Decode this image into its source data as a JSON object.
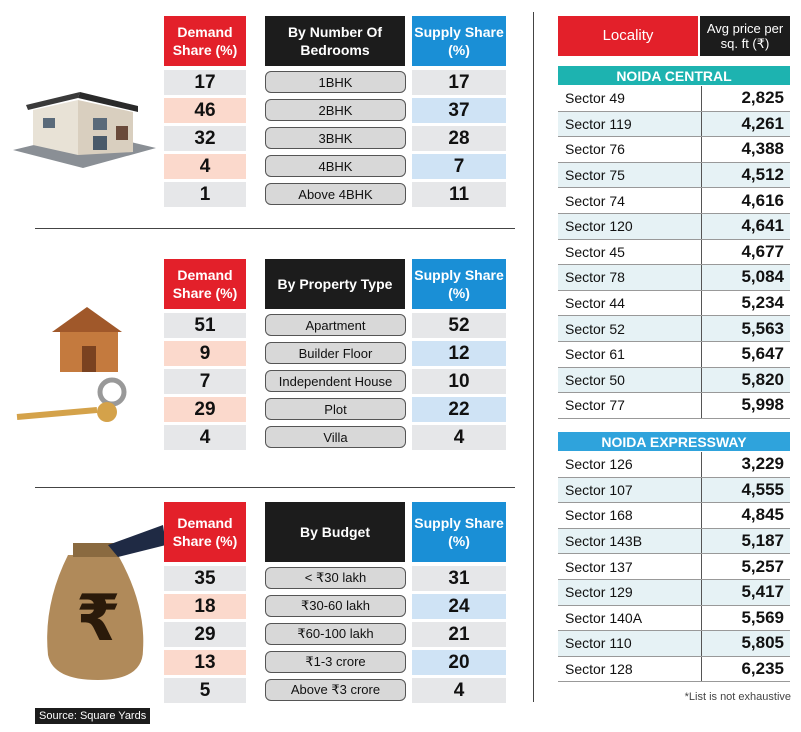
{
  "colors": {
    "demand_header": "#e3202a",
    "category_header": "#1c1c1c",
    "supply_header": "#1a8fd6",
    "demand_alt": "#fbd9cc",
    "supply_alt": "#cfe3f5",
    "neutral_row": "#e6e7e9",
    "noida_central": "#1db3b0",
    "noida_expressway": "#2fa3dc"
  },
  "headers": {
    "demand": "Demand Share (%)",
    "supply": "Supply Share (%)",
    "locality": "Locality",
    "avg_price": "Avg price per sq. ft (₹)"
  },
  "source": "Source: Square Yards",
  "footnote": "*List is not exhaustive",
  "chart_data": [
    {
      "type": "table",
      "title": "By Number Of Bedrooms",
      "categories": [
        "1BHK",
        "2BHK",
        "3BHK",
        "4BHK",
        "Above 4BHK"
      ],
      "series": [
        {
          "name": "Demand Share (%)",
          "values": [
            17,
            46,
            32,
            4,
            1
          ]
        },
        {
          "name": "Supply Share (%)",
          "values": [
            17,
            37,
            28,
            7,
            11
          ]
        }
      ]
    },
    {
      "type": "table",
      "title": "By Property Type",
      "categories": [
        "Apartment",
        "Builder Floor",
        "Independent House",
        "Plot",
        "Villa"
      ],
      "series": [
        {
          "name": "Demand Share (%)",
          "values": [
            51,
            9,
            7,
            29,
            4
          ]
        },
        {
          "name": "Supply Share (%)",
          "values": [
            52,
            12,
            10,
            22,
            4
          ]
        }
      ]
    },
    {
      "type": "table",
      "title": "By Budget",
      "categories": [
        "< ₹30 lakh",
        "₹30-60 lakh",
        "₹60-100 lakh",
        "₹1-3 crore",
        "Above ₹3 crore"
      ],
      "series": [
        {
          "name": "Demand Share (%)",
          "values": [
            35,
            18,
            29,
            13,
            5
          ]
        },
        {
          "name": "Supply Share (%)",
          "values": [
            31,
            24,
            21,
            20,
            4
          ]
        }
      ]
    },
    {
      "type": "table",
      "title": "NOIDA CENTRAL",
      "categories": [
        "Sector 49",
        "Sector 119",
        "Sector 76",
        "Sector 75",
        "Sector 74",
        "Sector 120",
        "Sector 45",
        "Sector 78",
        "Sector 44",
        "Sector 52",
        "Sector 61",
        "Sector 50",
        "Sector 77"
      ],
      "values": [
        "2,825",
        "4,261",
        "4,388",
        "4,512",
        "4,616",
        "4,641",
        "4,677",
        "5,084",
        "5,234",
        "5,563",
        "5,647",
        "5,820",
        "5,998"
      ]
    },
    {
      "type": "table",
      "title": "NOIDA EXPRESSWAY",
      "categories": [
        "Sector 126",
        "Sector 107",
        "Sector 168",
        "Sector 143B",
        "Sector 137",
        "Sector 129",
        "Sector 140A",
        "Sector 110",
        "Sector 128"
      ],
      "values": [
        "3,229",
        "4,555",
        "4,845",
        "5,187",
        "5,257",
        "5,417",
        "5,569",
        "5,805",
        "6,235"
      ]
    }
  ]
}
